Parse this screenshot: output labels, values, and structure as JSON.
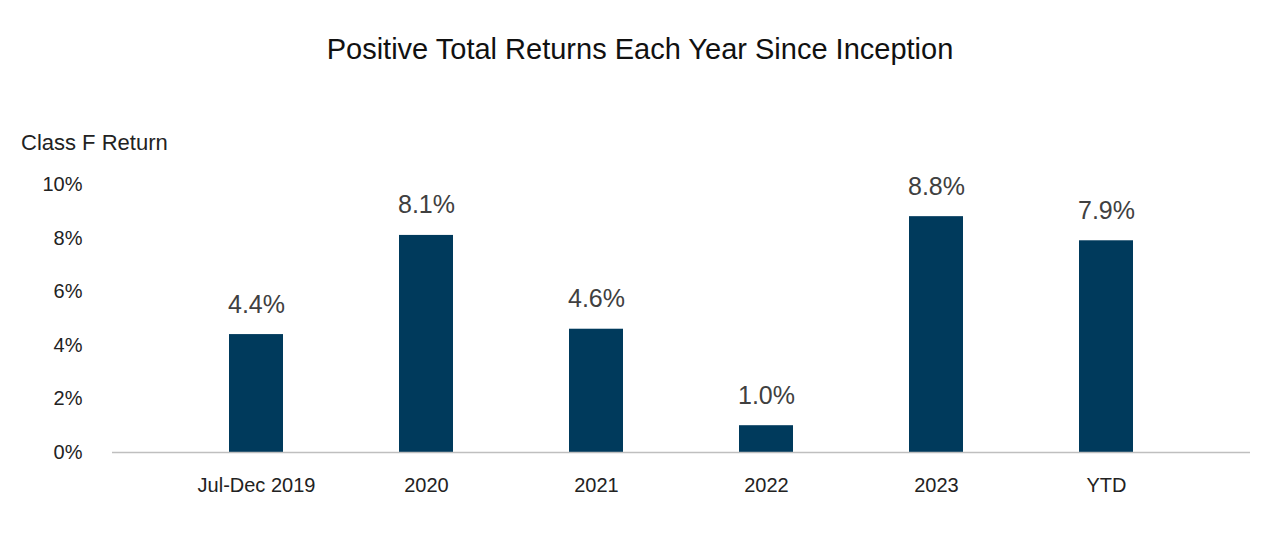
{
  "chart_data": {
    "type": "bar",
    "title": "Positive Total Returns Each Year Since Inception",
    "y_label": "Class F Return",
    "categories": [
      "Jul-Dec 2019",
      "2020",
      "2021",
      "2022",
      "2023",
      "YTD"
    ],
    "values": [
      4.4,
      8.1,
      4.6,
      1.0,
      8.8,
      7.9
    ],
    "value_labels": [
      "4.4%",
      "8.1%",
      "4.6%",
      "1.0%",
      "8.8%",
      "7.9%"
    ],
    "color": "#003a5c",
    "ylim": [
      0,
      10
    ],
    "yticks": [
      {
        "value": 0,
        "label": "0%"
      },
      {
        "value": 2,
        "label": "2%"
      },
      {
        "value": 4,
        "label": "4%"
      },
      {
        "value": 6,
        "label": "6%"
      },
      {
        "value": 8,
        "label": "8%"
      },
      {
        "value": 10,
        "label": "10%"
      }
    ],
    "grid": false,
    "data_labels": true
  }
}
